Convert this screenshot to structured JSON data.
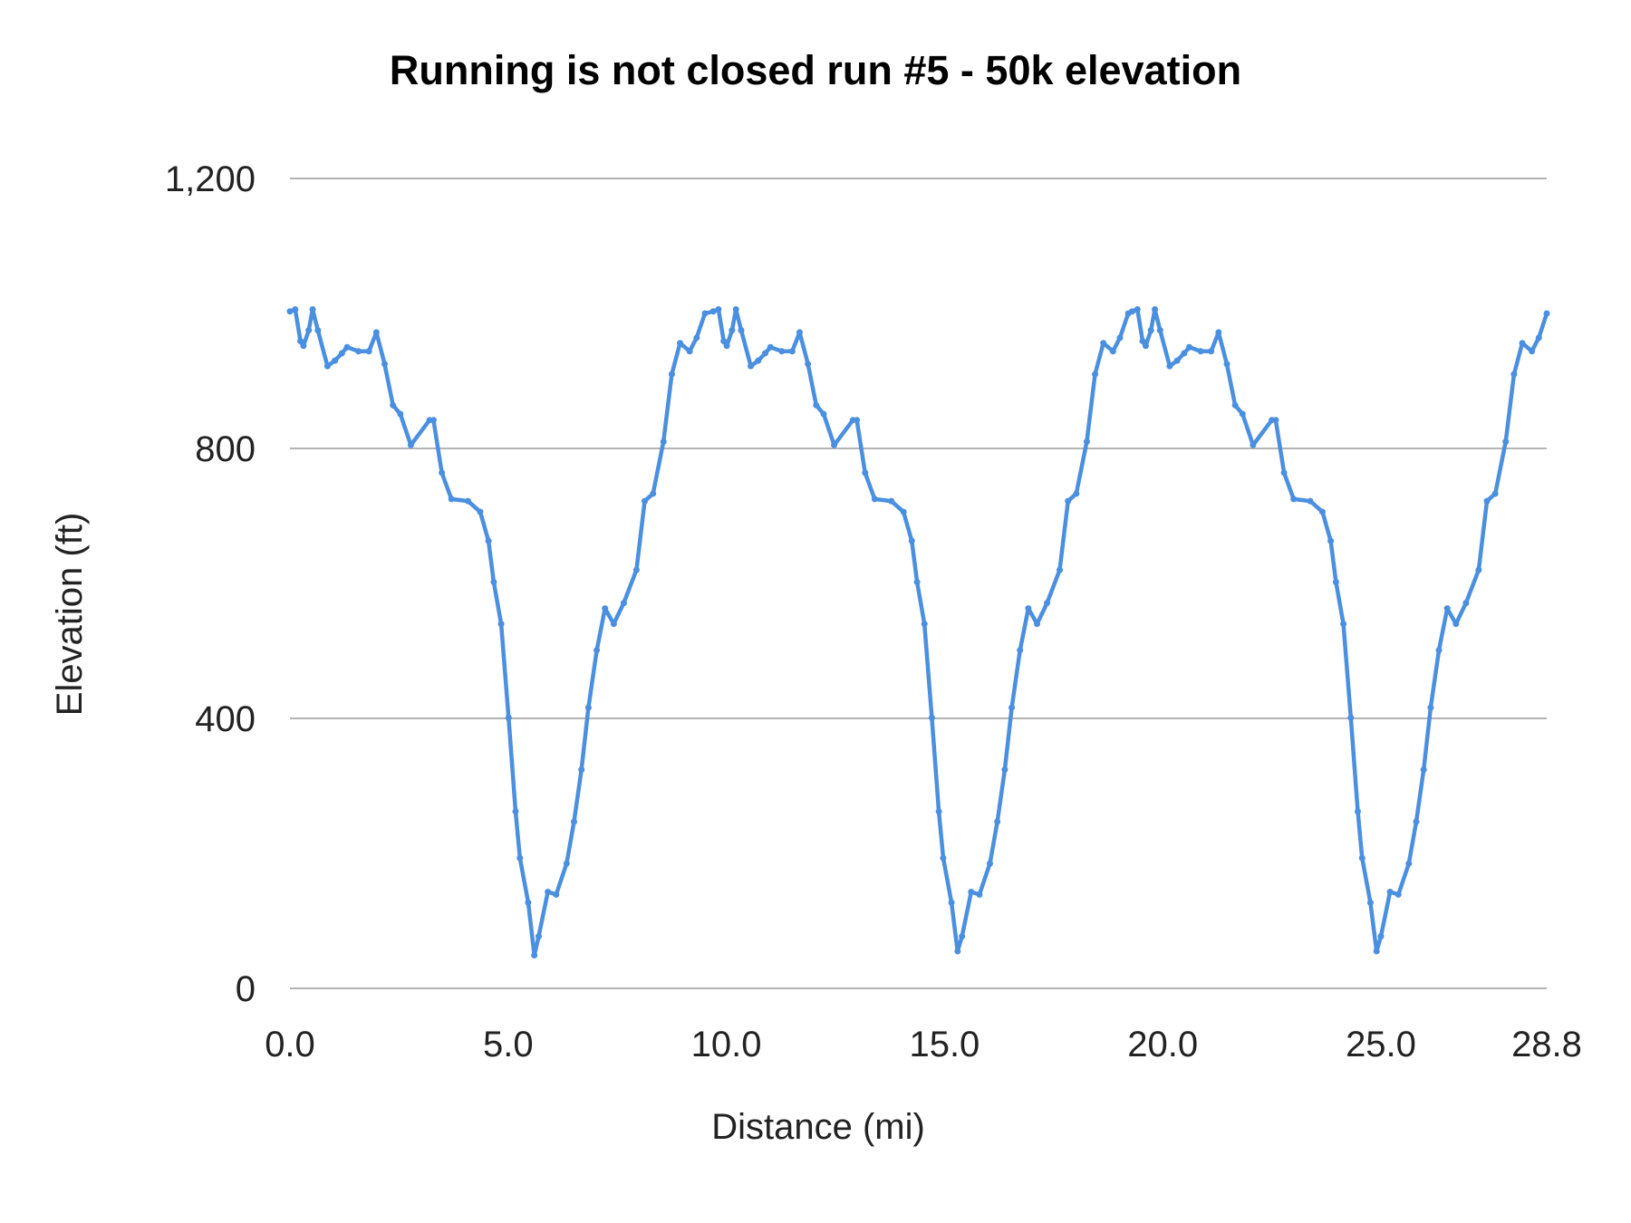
{
  "chart_data": {
    "type": "line",
    "title": "Running is not closed run #5 - 50k elevation",
    "xlabel": "Distance (mi)",
    "ylabel": "Elevation (ft)",
    "xlim": [
      0,
      28.8
    ],
    "ylim": [
      0,
      1200
    ],
    "x_ticks": [
      "0.0",
      "5.0",
      "10.0",
      "15.0",
      "20.0",
      "25.0",
      "28.8"
    ],
    "x_tick_values": [
      0,
      5,
      10,
      15,
      20,
      25,
      28.8
    ],
    "y_ticks": [
      "0",
      "400",
      "800",
      "1,200"
    ],
    "y_tick_values": [
      0,
      400,
      800,
      1200
    ],
    "grid": "horizontal",
    "legend": "none",
    "color": "#4a8fe0",
    "series": [
      {
        "x": [
          0,
          0.12,
          0.24,
          0.31,
          0.43,
          0.52,
          0.64,
          0.86,
          1.03,
          1.19,
          1.31,
          1.57,
          1.81,
          1.98,
          2.17,
          2.36,
          2.53,
          2.77,
          3.2,
          3.29,
          3.48,
          3.7,
          4.08,
          4.36,
          4.55,
          4.67,
          4.84,
          5.01,
          5.17,
          5.27,
          5.46,
          5.6,
          5.7,
          5.91,
          6.1,
          6.34,
          6.51,
          6.68,
          6.84,
          7.03,
          7.22,
          7.42,
          7.65,
          7.94,
          8.13,
          8.32,
          8.56,
          8.75,
          8.94,
          9.16,
          9.32,
          9.51,
          9.7,
          9.82,
          9.94,
          10.01,
          10.13,
          10.22,
          10.34,
          10.56,
          10.73,
          10.89,
          11.01,
          11.27,
          11.51,
          11.68,
          11.87,
          12.06,
          12.23,
          12.47,
          12.9,
          12.99,
          13.18,
          13.4,
          13.78,
          14.06,
          14.25,
          14.37,
          14.54,
          14.71,
          14.87,
          14.97,
          15.16,
          15.3,
          15.4,
          15.61,
          15.8,
          16.04,
          16.21,
          16.38,
          16.54,
          16.73,
          16.92,
          17.12,
          17.35,
          17.64,
          17.83,
          18.02,
          18.26,
          18.45,
          18.64,
          18.86,
          19.02,
          19.21,
          19.3,
          19.42,
          19.54,
          19.61,
          19.73,
          19.82,
          19.94,
          20.16,
          20.33,
          20.49,
          20.61,
          20.87,
          21.11,
          21.28,
          21.47,
          21.66,
          21.83,
          22.07,
          22.5,
          22.59,
          22.78,
          23.0,
          23.38,
          23.66,
          23.85,
          23.97,
          24.14,
          24.31,
          24.47,
          24.57,
          24.76,
          24.9,
          25.0,
          25.21,
          25.4,
          25.64,
          25.81,
          25.98,
          26.14,
          26.33,
          26.52,
          26.72,
          26.95,
          27.24,
          27.43,
          27.62,
          27.86,
          28.05,
          28.24,
          28.46,
          28.62,
          28.8
        ],
        "y": [
          1003,
          1006,
          959,
          952,
          975,
          1006,
          975,
          922,
          930,
          941,
          950,
          944,
          944,
          972,
          925,
          864,
          851,
          805,
          842,
          842,
          764,
          725,
          722,
          706,
          663,
          602,
          540,
          401,
          262,
          193,
          127,
          49,
          77,
          143,
          139,
          185,
          247,
          324,
          416,
          501,
          563,
          540,
          571,
          620,
          722,
          733,
          810,
          910,
          956,
          944,
          964,
          1000,
          1003,
          1006,
          959,
          952,
          975,
          1006,
          975,
          922,
          930,
          941,
          950,
          944,
          944,
          972,
          925,
          864,
          851,
          805,
          842,
          842,
          764,
          725,
          722,
          706,
          663,
          602,
          540,
          401,
          262,
          193,
          127,
          55,
          77,
          143,
          139,
          185,
          247,
          324,
          416,
          501,
          563,
          540,
          571,
          620,
          722,
          733,
          810,
          910,
          956,
          944,
          964,
          1000,
          1003,
          1006,
          959,
          952,
          975,
          1006,
          975,
          922,
          930,
          941,
          950,
          944,
          944,
          972,
          925,
          864,
          851,
          805,
          842,
          842,
          764,
          725,
          722,
          706,
          663,
          602,
          540,
          401,
          262,
          193,
          127,
          55,
          77,
          143,
          139,
          185,
          247,
          324,
          416,
          501,
          563,
          540,
          571,
          620,
          722,
          733,
          810,
          910,
          956,
          944,
          964,
          1000
        ]
      }
    ]
  }
}
